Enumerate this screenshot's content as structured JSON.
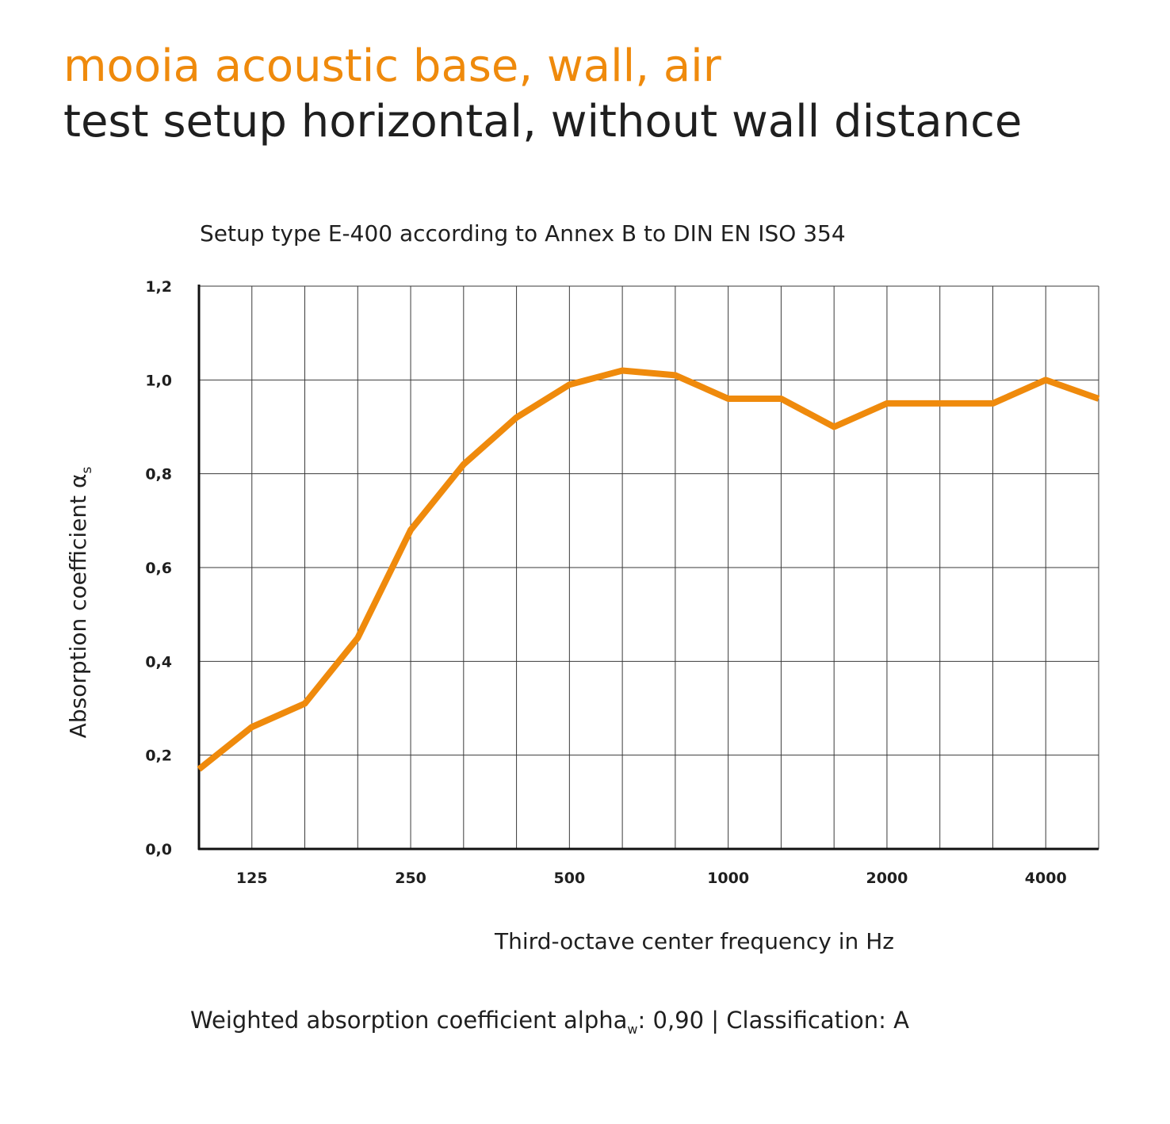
{
  "header": {
    "title": "mooia acoustic base, wall, air",
    "subtitle": "test setup horizontal, without wall distance"
  },
  "colors": {
    "accent": "#ef8a0c",
    "text": "#1f1f1f",
    "grid": "#3a3a3a"
  },
  "chart_data": {
    "type": "line",
    "title": "Setup type E-400 according to Annex B to DIN EN ISO 354",
    "xlabel": "Third-octave center frequency in Hz",
    "ylabel": "Absorption coefficient α",
    "ylabel_sub": "s",
    "x": [
      100,
      125,
      160,
      200,
      250,
      315,
      400,
      500,
      630,
      800,
      1000,
      1250,
      1600,
      2000,
      2500,
      3150,
      4000,
      5000
    ],
    "x_tick_labels": [
      "125",
      "250",
      "500",
      "1000",
      "2000",
      "4000"
    ],
    "x_tick_values": [
      125,
      250,
      500,
      1000,
      2000,
      4000
    ],
    "y_tick_labels": [
      "0,0",
      "0,2",
      "0,4",
      "0,6",
      "0,8",
      "1,0",
      "1,2"
    ],
    "ylim": [
      0,
      1.2
    ],
    "grid": true,
    "series": [
      {
        "color": "#ef8a0c",
        "values": [
          0.17,
          0.26,
          0.31,
          0.45,
          0.68,
          0.82,
          0.92,
          0.99,
          1.02,
          1.01,
          0.96,
          0.96,
          0.9,
          0.95,
          0.95,
          0.95,
          1.0,
          0.96
        ]
      }
    ]
  },
  "footer": {
    "text_before": "Weighted absorption coefficient alpha",
    "subscript": "w",
    "text_after": ": 0,90  |  Classification: A"
  }
}
